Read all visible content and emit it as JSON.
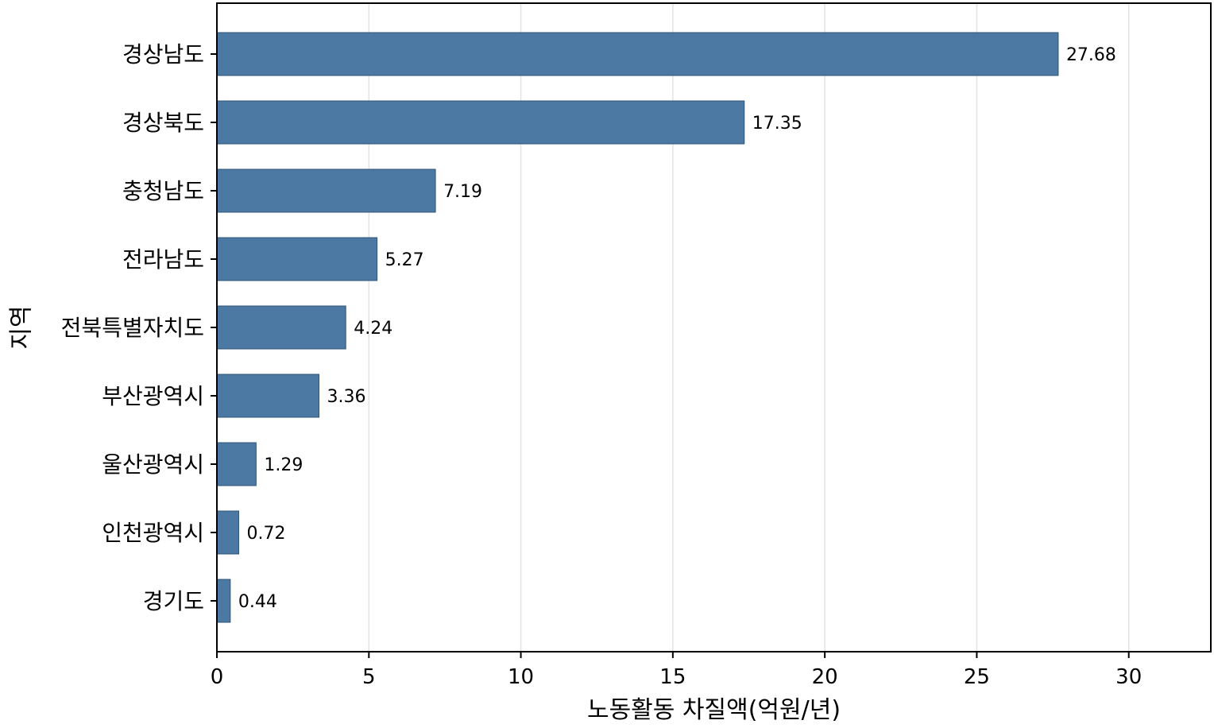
{
  "chart_data": {
    "type": "bar",
    "orientation": "horizontal",
    "categories": [
      "경상남도",
      "경상북도",
      "충청남도",
      "전라남도",
      "전북특별자치도",
      "부산광역시",
      "울산광역시",
      "인천광역시",
      "경기도"
    ],
    "values": [
      27.68,
      17.35,
      7.19,
      5.27,
      4.24,
      3.36,
      1.29,
      0.72,
      0.44
    ],
    "data_labels": [
      "27.68",
      "17.35",
      "7.19",
      "5.27",
      "4.24",
      "3.36",
      "1.29",
      "0.72",
      "0.44"
    ],
    "xlabel": "노동활동 차질액(억원/년)",
    "ylabel": "지역",
    "xlim": [
      0,
      32.7
    ],
    "xticks": [
      0,
      5,
      10,
      15,
      20,
      25,
      30
    ],
    "grid": "vertical",
    "legend": "none",
    "bar_color": "#4c78a4"
  }
}
